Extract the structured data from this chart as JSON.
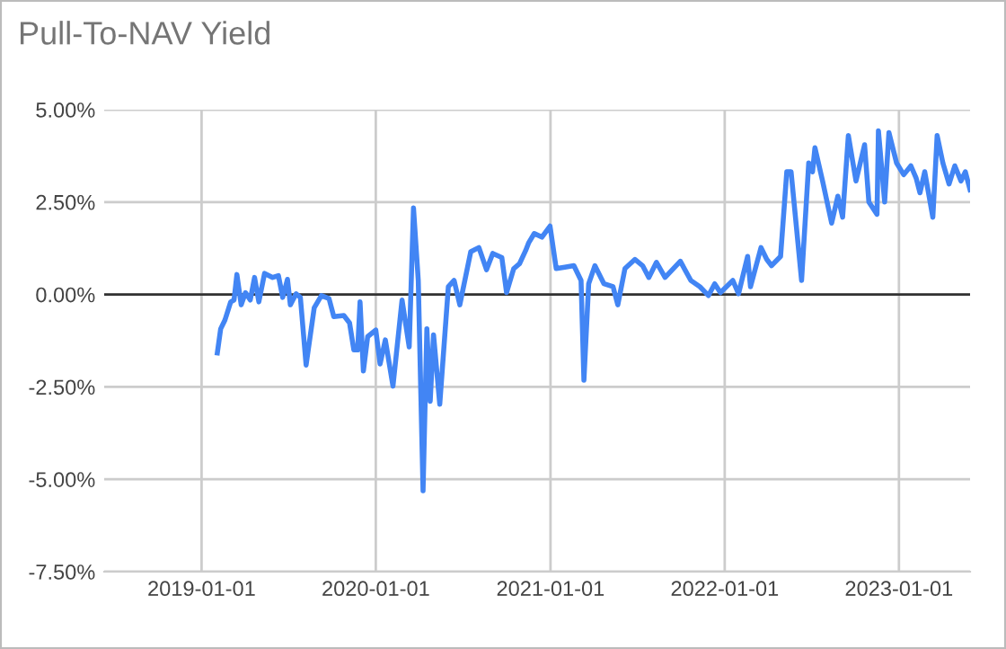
{
  "chart_data": {
    "type": "line",
    "title": "Pull-To-NAV Yield",
    "x": [
      "2019-02-03",
      "2019-02-10",
      "2019-02-19",
      "2019-03-03",
      "2019-03-10",
      "2019-03-16",
      "2019-03-25",
      "2019-04-03",
      "2019-04-13",
      "2019-04-22",
      "2019-05-01",
      "2019-05-13",
      "2019-05-30",
      "2019-06-11",
      "2019-06-20",
      "2019-06-30",
      "2019-07-06",
      "2019-07-18",
      "2019-07-27",
      "2019-08-08",
      "2019-08-25",
      "2019-09-09",
      "2019-09-25",
      "2019-10-05",
      "2019-10-26",
      "2019-11-07",
      "2019-11-16",
      "2019-11-24",
      "2019-11-29",
      "2019-12-06",
      "2019-12-15",
      "2020-01-01",
      "2020-01-10",
      "2020-01-21",
      "2020-02-06",
      "2020-02-25",
      "2020-03-11",
      "2020-03-20",
      "2020-03-30",
      "2020-04-09",
      "2020-04-17",
      "2020-04-24",
      "2020-05-01",
      "2020-05-14",
      "2020-06-01",
      "2020-06-13",
      "2020-06-25",
      "2020-07-18",
      "2020-08-04",
      "2020-08-20",
      "2020-09-02",
      "2020-09-21",
      "2020-10-01",
      "2020-10-16",
      "2020-10-28",
      "2020-11-10",
      "2020-11-16",
      "2020-11-28",
      "2020-12-14",
      "2020-12-31",
      "2021-01-13",
      "2021-01-31",
      "2021-02-19",
      "2021-03-06",
      "2021-03-12",
      "2021-03-22",
      "2021-04-04",
      "2021-04-23",
      "2021-05-12",
      "2021-05-22",
      "2021-06-06",
      "2021-06-27",
      "2021-07-13",
      "2021-07-26",
      "2021-08-11",
      "2021-08-29",
      "2021-09-30",
      "2021-10-22",
      "2021-11-10",
      "2021-11-28",
      "2021-12-11",
      "2021-12-23",
      "2022-01-18",
      "2022-01-30",
      "2022-02-18",
      "2022-02-24",
      "2022-03-18",
      "2022-03-30",
      "2022-04-09",
      "2022-04-28",
      "2022-05-11",
      "2022-05-20",
      "2022-06-11",
      "2022-06-26",
      "2022-07-04",
      "2022-07-09",
      "2022-07-25",
      "2022-08-13",
      "2022-08-26",
      "2022-09-05",
      "2022-09-17",
      "2022-10-03",
      "2022-10-21",
      "2022-10-30",
      "2022-11-16",
      "2022-11-19",
      "2022-12-02",
      "2022-12-11",
      "2022-12-27",
      "2023-01-11",
      "2023-01-26",
      "2023-02-06",
      "2023-02-14",
      "2023-02-24",
      "2023-03-13",
      "2023-03-22",
      "2023-04-03",
      "2023-04-16",
      "2023-04-28",
      "2023-05-11",
      "2023-05-20",
      "2023-05-30"
    ],
    "series": [
      {
        "color": "#4285f4",
        "values": [
          -1.58,
          -0.93,
          -0.69,
          -0.2,
          -0.15,
          0.54,
          -0.28,
          0.05,
          -0.15,
          0.46,
          -0.2,
          0.57,
          0.46,
          0.51,
          -0.08,
          0.41,
          -0.28,
          0.02,
          -0.08,
          -1.91,
          -0.36,
          -0.03,
          -0.11,
          -0.6,
          -0.57,
          -0.77,
          -1.5,
          -1.5,
          -0.2,
          -2.07,
          -1.14,
          -0.96,
          -1.88,
          -1.23,
          -2.48,
          -0.15,
          -1.42,
          2.34,
          0.38,
          -5.31,
          -0.93,
          -2.89,
          -1.09,
          -2.97,
          0.21,
          0.38,
          -0.28,
          1.16,
          1.27,
          0.67,
          1.11,
          1.0,
          0.05,
          0.7,
          0.83,
          1.19,
          1.39,
          1.65,
          1.55,
          1.85,
          0.7,
          0.74,
          0.78,
          0.38,
          -2.32,
          0.29,
          0.78,
          0.29,
          0.21,
          -0.28,
          0.7,
          0.95,
          0.78,
          0.46,
          0.87,
          0.46,
          0.9,
          0.38,
          0.21,
          -0.03,
          0.29,
          0.05,
          0.38,
          0.02,
          1.03,
          0.21,
          1.27,
          0.95,
          0.78,
          1.03,
          3.32,
          3.32,
          0.38,
          3.56,
          3.32,
          3.97,
          3.07,
          1.93,
          2.66,
          2.09,
          4.3,
          3.07,
          4.05,
          2.5,
          2.17,
          4.43,
          2.5,
          4.38,
          3.56,
          3.24,
          3.48,
          3.15,
          2.75,
          3.32,
          2.09,
          4.3,
          3.56,
          2.99,
          3.48,
          3.07,
          3.32,
          2.83
        ]
      }
    ],
    "xlim": [
      "2018-06-11",
      "2023-05-30"
    ],
    "xticks": [
      {
        "value": "2019-01-01",
        "label": "2019-01-01"
      },
      {
        "value": "2020-01-01",
        "label": "2020-01-01"
      },
      {
        "value": "2021-01-01",
        "label": "2021-01-01"
      },
      {
        "value": "2022-01-01",
        "label": "2022-01-01"
      },
      {
        "value": "2023-01-01",
        "label": "2023-01-01"
      }
    ],
    "ylim": [
      -7.5,
      5
    ],
    "yticks": [
      {
        "value": -7.5,
        "label": "-7.50%"
      },
      {
        "value": -5,
        "label": "-5.00%"
      },
      {
        "value": -2.5,
        "label": "-2.50%"
      },
      {
        "value": 0,
        "label": "0.00%"
      },
      {
        "value": 2.5,
        "label": "2.50%"
      },
      {
        "value": 5,
        "label": "5.00%"
      }
    ],
    "ref_lines": [
      {
        "axis": "y",
        "value": 0,
        "color": "#333333"
      }
    ],
    "grid": true,
    "marker": "none",
    "line_style": "solid"
  }
}
